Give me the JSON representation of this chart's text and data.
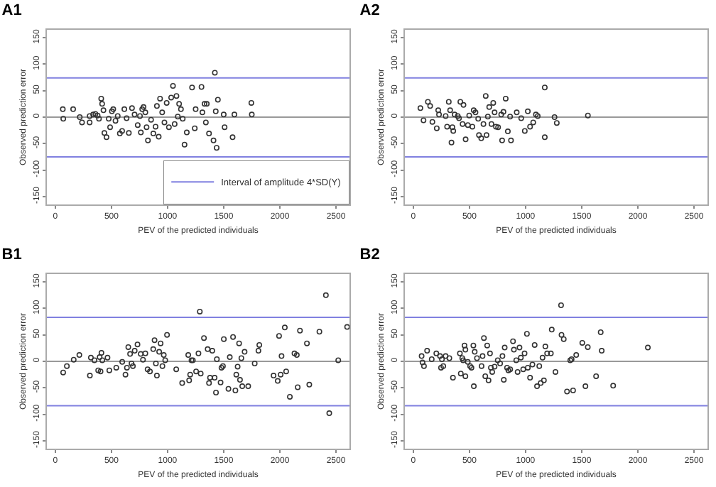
{
  "chart_data": [
    {
      "type": "scatter",
      "title": "A1",
      "xlabel": "PEV of the predicted individuals",
      "ylabel": "Observed prediction error",
      "xlim": [
        -75,
        2620
      ],
      "ylim": [
        -165,
        165
      ],
      "xticks": [
        0,
        500,
        1000,
        1500,
        2000,
        2500
      ],
      "yticks": [
        -150,
        -100,
        -50,
        0,
        50,
        100,
        150
      ],
      "grid": false,
      "marker": "circle",
      "legend": "bottom right",
      "series": [
        {
          "color": "#333333",
          "x": [
            67,
            71,
            159,
            218,
            238,
            306,
            306,
            337,
            357,
            377,
            389,
            409,
            417,
            429,
            437,
            456,
            476,
            488,
            504,
            516,
            536,
            556,
            575,
            595,
            615,
            635,
            655,
            683,
            706,
            734,
            754,
            762,
            774,
            786,
            802,
            813,
            825,
            853,
            873,
            893,
            905,
            921,
            933,
            952,
            972,
            992,
            1012,
            1032,
            1048,
            1063,
            1079,
            1091,
            1103,
            1119,
            1135,
            1151,
            1171,
            1218,
            1242,
            1250,
            1302,
            1310,
            1329,
            1349,
            1341,
            1369,
            1409,
            1421,
            1429,
            1437,
            1448,
            1500,
            1508,
            1579,
            1595,
            1746,
            1750
          ],
          "values": [
            15,
            -3,
            15,
            0,
            -10,
            -10,
            2,
            5,
            6,
            3,
            -3,
            35,
            25,
            13,
            -30,
            -38,
            -3,
            -19,
            11,
            15,
            -7,
            2,
            -31,
            -26,
            15,
            -2,
            -30,
            17,
            5,
            -15,
            2,
            -29,
            15,
            19,
            9,
            -19,
            -44,
            -5,
            -31,
            -18,
            21,
            -37,
            35,
            9,
            -10,
            27,
            -19,
            37,
            59,
            -13,
            40,
            1,
            25,
            15,
            -3,
            -52,
            -29,
            56,
            -21,
            15,
            57,
            9,
            25,
            25,
            -10,
            -31,
            -44,
            84,
            11,
            -58,
            33,
            5,
            -19,
            -38,
            5,
            27,
            5
          ]
        }
      ],
      "ref_lines": [
        {
          "axis": "y",
          "value": 0,
          "color": "#999999"
        },
        {
          "axis": "y",
          "value": 74,
          "color": "#8080e0",
          "label": "Interval of amplitude 4*SD(Y)"
        },
        {
          "axis": "y",
          "value": -75,
          "color": "#8080e0"
        }
      ]
    },
    {
      "type": "scatter",
      "title": "A2",
      "xlabel": "PEV of the predicted individuals",
      "ylabel": "Observed prediction error",
      "xlim": [
        -75,
        2620
      ],
      "ylim": [
        -165,
        165
      ],
      "xticks": [
        0,
        500,
        1000,
        1500,
        2000,
        2500
      ],
      "yticks": [
        -150,
        -100,
        -50,
        0,
        50,
        100,
        150
      ],
      "grid": false,
      "marker": "circle",
      "series": [
        {
          "color": "#333333",
          "x": [
            63,
            91,
            130,
            150,
            170,
            209,
            222,
            229,
            288,
            301,
            316,
            328,
            340,
            348,
            356,
            368,
            396,
            407,
            419,
            439,
            447,
            466,
            486,
            498,
            526,
            538,
            554,
            578,
            585,
            605,
            625,
            645,
            652,
            664,
            676,
            696,
            712,
            724,
            736,
            755,
            783,
            791,
            803,
            823,
            842,
            862,
            870,
            921,
            961,
            993,
            1020,
            1040,
            1068,
            1092,
            1108,
            1171,
            1171,
            1258,
            1278,
            1555
          ],
          "values": [
            17,
            -6,
            29,
            21,
            -9,
            -21,
            13,
            5,
            2,
            -18,
            29,
            13,
            -48,
            -19,
            -26,
            5,
            2,
            -2,
            29,
            -13,
            23,
            -42,
            -15,
            3,
            -18,
            13,
            9,
            -3,
            -34,
            -40,
            -13,
            40,
            -34,
            1,
            19,
            -13,
            27,
            9,
            -18,
            -19,
            5,
            -44,
            10,
            35,
            -27,
            1,
            -44,
            9,
            -2,
            -26,
            11,
            -18,
            -10,
            5,
            2,
            56,
            -38,
            0,
            -11,
            3
          ]
        }
      ],
      "ref_lines": [
        {
          "axis": "y",
          "value": 0,
          "color": "#999999"
        },
        {
          "axis": "y",
          "value": 74,
          "color": "#8080e0"
        },
        {
          "axis": "y",
          "value": -75,
          "color": "#8080e0"
        }
      ]
    },
    {
      "type": "scatter",
      "title": "B1",
      "xlabel": "PEV of the predicted individuals",
      "ylabel": "Observed prediction error",
      "xlim": [
        -75,
        2620
      ],
      "ylim": [
        -165,
        165
      ],
      "xticks": [
        0,
        500,
        1000,
        1500,
        2000,
        2500
      ],
      "yticks": [
        -150,
        -100,
        -50,
        0,
        50,
        100,
        150
      ],
      "grid": false,
      "marker": "circle",
      "series": [
        {
          "color": "#333333",
          "x": [
            70,
            103,
            164,
            214,
            308,
            317,
            349,
            382,
            395,
            403,
            411,
            419,
            465,
            481,
            543,
            596,
            625,
            638,
            650,
            666,
            679,
            691,
            707,
            732,
            761,
            781,
            802,
            822,
            843,
            872,
            884,
            896,
            905,
            925,
            938,
            954,
            966,
            979,
            995,
            1077,
            1130,
            1184,
            1192,
            1201,
            1213,
            1225,
            1254,
            1275,
            1287,
            1295,
            1324,
            1357,
            1369,
            1378,
            1398,
            1419,
            1431,
            1439,
            1472,
            1480,
            1493,
            1501,
            1542,
            1554,
            1583,
            1604,
            1612,
            1624,
            1637,
            1645,
            1657,
            1665,
            1686,
            1718,
            1776,
            1809,
            1817,
            1944,
            1981,
            1993,
            2007,
            2015,
            2056,
            2044,
            2089,
            2130,
            2151,
            2159,
            2179,
            2241,
            2262,
            2352,
            2410,
            2440,
            2520,
            2599
          ],
          "values": [
            -21,
            -9,
            3,
            12,
            -27,
            7,
            2,
            -17,
            8,
            -19,
            16,
            2,
            7,
            -17,
            -12,
            -1,
            -25,
            -12,
            27,
            14,
            -4,
            -9,
            20,
            32,
            14,
            3,
            15,
            -15,
            -19,
            23,
            40,
            -4,
            -27,
            18,
            34,
            -9,
            12,
            2,
            50,
            -15,
            -41,
            12,
            -36,
            -25,
            2,
            2,
            -19,
            15,
            94,
            -23,
            44,
            23,
            -41,
            -31,
            20,
            -31,
            -59,
            4,
            -40,
            -12,
            -9,
            42,
            -52,
            8,
            46,
            -55,
            -25,
            -10,
            34,
            -35,
            6,
            -47,
            18,
            -47,
            -4,
            20,
            31,
            -27,
            -37,
            48,
            -25,
            10,
            -19,
            64,
            -67,
            15,
            12,
            -49,
            58,
            34,
            -44,
            56,
            125,
            -98,
            2,
            65
          ]
        }
      ],
      "ref_lines": [
        {
          "axis": "y",
          "value": 0,
          "color": "#999999"
        },
        {
          "axis": "y",
          "value": 83,
          "color": "#8080e0"
        },
        {
          "axis": "y",
          "value": -84,
          "color": "#8080e0"
        }
      ]
    },
    {
      "type": "scatter",
      "title": "B2",
      "xlabel": "PEV of the predicted individuals",
      "ylabel": "Observed prediction error",
      "xlim": [
        -75,
        2620
      ],
      "ylim": [
        -165,
        165
      ],
      "xticks": [
        0,
        500,
        1000,
        1500,
        2000,
        2500
      ],
      "yticks": [
        -150,
        -100,
        -50,
        0,
        50,
        100,
        150
      ],
      "grid": false,
      "marker": "circle",
      "series": [
        {
          "color": "#333333",
          "x": [
            74,
            82,
            95,
            123,
            164,
            205,
            238,
            247,
            255,
            267,
            288,
            321,
            353,
            415,
            423,
            436,
            444,
            456,
            464,
            464,
            485,
            506,
            518,
            535,
            539,
            547,
            567,
            608,
            617,
            629,
            641,
            658,
            670,
            683,
            691,
            703,
            724,
            752,
            773,
            794,
            806,
            814,
            835,
            847,
            863,
            888,
            896,
            917,
            929,
            946,
            958,
            979,
            991,
            1012,
            1020,
            1040,
            1061,
            1081,
            1102,
            1122,
            1135,
            1151,
            1163,
            1176,
            1192,
            1225,
            1233,
            1266,
            1316,
            1320,
            1340,
            1369,
            1398,
            1410,
            1423,
            1451,
            1505,
            1533,
            1554,
            1628,
            1669,
            1678,
            1780,
            2089
          ],
          "values": [
            10,
            -2,
            -9,
            20,
            4,
            15,
            10,
            -12,
            4,
            -9,
            10,
            6,
            -31,
            15,
            -23,
            6,
            2,
            30,
            22,
            -28,
            -1,
            -9,
            -12,
            30,
            -47,
            18,
            6,
            -9,
            10,
            44,
            -28,
            30,
            -36,
            15,
            -12,
            -20,
            -10,
            2,
            -4,
            10,
            -35,
            26,
            -12,
            -17,
            -15,
            38,
            22,
            2,
            -20,
            26,
            7,
            -15,
            15,
            52,
            -12,
            -31,
            -6,
            31,
            -47,
            -9,
            -41,
            7,
            -36,
            28,
            15,
            15,
            60,
            -20,
            106,
            50,
            42,
            -57,
            2,
            4,
            -55,
            12,
            35,
            -47,
            27,
            -28,
            55,
            20,
            -46,
            26
          ]
        }
      ],
      "ref_lines": [
        {
          "axis": "y",
          "value": 0,
          "color": "#999999"
        },
        {
          "axis": "y",
          "value": 83,
          "color": "#8080e0"
        },
        {
          "axis": "y",
          "value": -84,
          "color": "#8080e0"
        }
      ]
    }
  ]
}
